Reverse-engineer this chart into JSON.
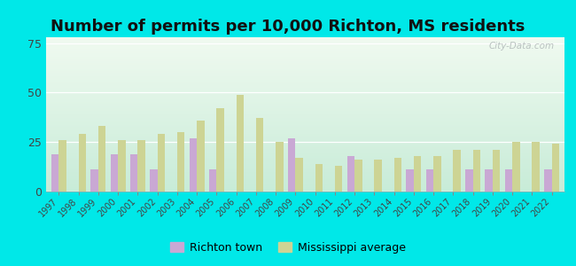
{
  "title": "Number of permits per 10,000 Richton, MS residents",
  "years": [
    1997,
    1998,
    1999,
    2000,
    2001,
    2002,
    2003,
    2004,
    2005,
    2006,
    2007,
    2008,
    2009,
    2010,
    2011,
    2012,
    2013,
    2014,
    2015,
    2016,
    2017,
    2018,
    2019,
    2020,
    2021,
    2022
  ],
  "richton": [
    19,
    0,
    11,
    19,
    19,
    11,
    0,
    27,
    11,
    0,
    0,
    0,
    27,
    0,
    0,
    18,
    0,
    0,
    11,
    11,
    0,
    11,
    11,
    11,
    0,
    11
  ],
  "ms_avg": [
    26,
    29,
    33,
    26,
    26,
    29,
    30,
    36,
    42,
    49,
    37,
    25,
    17,
    14,
    13,
    16,
    16,
    17,
    18,
    18,
    21,
    21,
    21,
    25,
    25,
    24
  ],
  "richton_color": "#c9a8d4",
  "ms_avg_color": "#cdd494",
  "background_color_outer": "#00e8e8",
  "background_top": "#f0faf0",
  "background_bottom": "#c8ecd8",
  "ylim": [
    0,
    78
  ],
  "yticks": [
    0,
    25,
    50,
    75
  ],
  "legend_richton": "Richton town",
  "legend_ms": "Mississippi average",
  "watermark": "City-Data.com",
  "title_fontsize": 13,
  "tick_fontsize": 7,
  "ylabel_fontsize": 9
}
